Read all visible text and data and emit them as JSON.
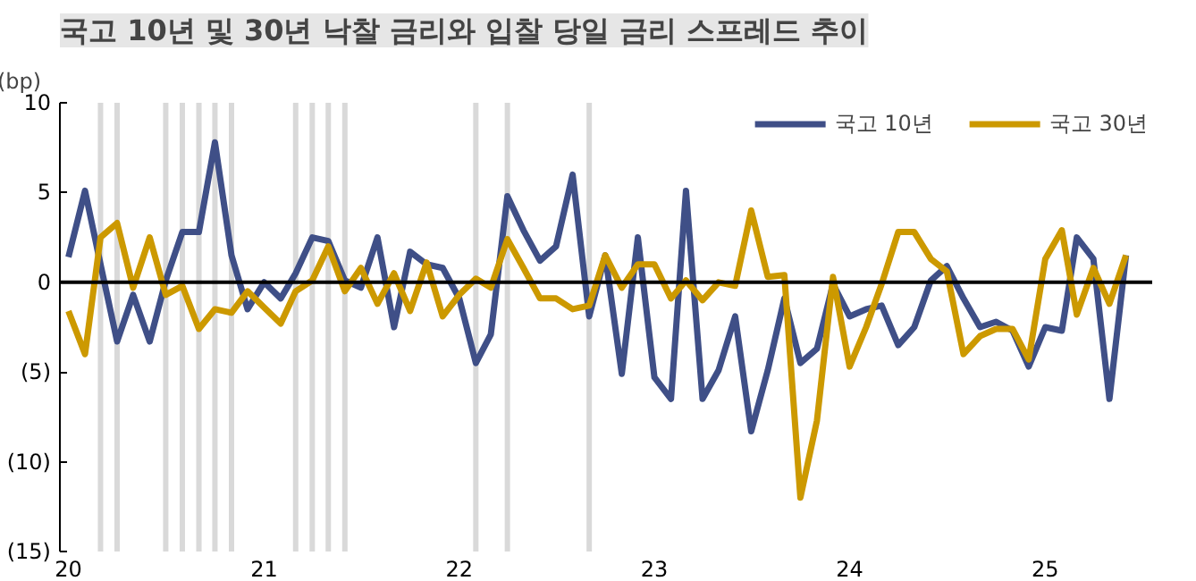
{
  "chart_data": {
    "type": "line",
    "title": "국고 10년 및 30년 낙찰 금리와 입찰 당일 금리 스프레드 추이",
    "ylabel": "(bp)",
    "x": [
      "2020-01",
      "2020-02",
      "2020-03",
      "2020-04",
      "2020-05",
      "2020-06",
      "2020-07",
      "2020-08",
      "2020-09",
      "2020-10",
      "2020-11",
      "2020-12",
      "2021-01",
      "2021-02",
      "2021-03",
      "2021-04",
      "2021-05",
      "2021-06",
      "2021-07",
      "2021-08",
      "2021-09",
      "2021-10",
      "2021-11",
      "2021-12",
      "2022-01",
      "2022-02",
      "2022-03",
      "2022-04",
      "2022-05",
      "2022-06",
      "2022-07",
      "2022-08",
      "2022-09",
      "2022-10",
      "2022-11",
      "2022-12",
      "2023-01",
      "2023-02",
      "2023-03",
      "2023-04",
      "2023-05",
      "2023-06",
      "2023-07",
      "2023-08",
      "2023-09",
      "2023-10",
      "2023-11",
      "2023-12",
      "2024-01",
      "2024-02",
      "2024-03",
      "2024-04",
      "2024-05",
      "2024-06",
      "2024-07",
      "2024-08",
      "2024-09",
      "2024-10",
      "2024-11",
      "2024-12",
      "2025-01",
      "2025-02",
      "2025-03",
      "2025-04",
      "2025-05",
      "2025-06"
    ],
    "series": [
      {
        "name": "국고 10년",
        "color": "#3f4f87",
        "values": [
          1.4,
          5.1,
          1.0,
          -3.3,
          -0.7,
          -3.3,
          0.1,
          2.8,
          2.8,
          7.8,
          1.5,
          -1.5,
          0,
          -0.9,
          0.5,
          2.5,
          2.3,
          0.1,
          -0.3,
          2.5,
          -2.5,
          1.7,
          1.0,
          0.8,
          -0.9,
          -4.5,
          -2.9,
          4.8,
          2.9,
          1.2,
          2.0,
          6.0,
          -1.9,
          1.5,
          -5.1,
          2.5,
          -5.3,
          -6.5,
          5.1,
          -6.5,
          -4.9,
          -1.9,
          -8.3,
          -4.9,
          -0.9,
          -4.5,
          -3.7,
          -0.1,
          -1.9,
          -1.5,
          -1.3,
          -3.5,
          -2.5,
          0.1,
          0.9,
          -0.9,
          -2.5,
          -2.2,
          -2.7,
          -4.7,
          -2.5,
          -2.7,
          2.5,
          1.3,
          -6.5,
          1.5
        ]
      },
      {
        "name": "국고 30년",
        "color": "#cc9900",
        "values": [
          -1.6,
          -4.0,
          2.5,
          3.3,
          -0.3,
          2.5,
          -0.7,
          -0.2,
          -2.6,
          -1.5,
          -1.7,
          -0.5,
          -1.4,
          -2.3,
          -0.5,
          0.1,
          2.0,
          -0.5,
          0.8,
          -1.2,
          0.5,
          -1.6,
          1.1,
          -1.9,
          -0.7,
          0.2,
          -0.3,
          2.4,
          0.8,
          -0.9,
          -0.9,
          -1.5,
          -1.3,
          1.5,
          -0.3,
          1.0,
          1.0,
          -0.9,
          0.1,
          -1.0,
          0,
          -0.2,
          4.0,
          0.3,
          0.4,
          -12.0,
          -7.7,
          0.3,
          -4.7,
          -2.5,
          -0.1,
          2.8,
          2.8,
          1.3,
          0.6,
          -4.0,
          -3.0,
          -2.6,
          -2.6,
          -4.3,
          1.3,
          2.9,
          -1.8,
          0.8,
          -1.2,
          1.5
        ]
      }
    ],
    "xlim": [
      "2019-12-16",
      "2025-07-20"
    ],
    "xticks": [
      {
        "value": "2020-01",
        "label": "20"
      },
      {
        "value": "2021-01",
        "label": "21"
      },
      {
        "value": "2022-01",
        "label": "22"
      },
      {
        "value": "2023-01",
        "label": "23"
      },
      {
        "value": "2024-01",
        "label": "24"
      },
      {
        "value": "2025-01",
        "label": "25"
      }
    ],
    "ylim": [
      -15,
      10
    ],
    "yticks": [
      10,
      5,
      0,
      {
        "value": -5,
        "label": "(5)"
      },
      {
        "value": -10,
        "label": "(10)"
      },
      {
        "value": -15,
        "label": "(15)"
      }
    ],
    "ref_lines": [
      {
        "axis": "y",
        "value": 0,
        "color": "#000000"
      },
      {
        "axis": "x",
        "value": "2020-03",
        "color": "#d9d9d9"
      },
      {
        "axis": "x",
        "value": "2020-04",
        "color": "#d9d9d9"
      },
      {
        "axis": "x",
        "value": "2020-07",
        "color": "#d9d9d9"
      },
      {
        "axis": "x",
        "value": "2020-08",
        "color": "#d9d9d9"
      },
      {
        "axis": "x",
        "value": "2020-09",
        "color": "#d9d9d9"
      },
      {
        "axis": "x",
        "value": "2020-10",
        "color": "#d9d9d9"
      },
      {
        "axis": "x",
        "value": "2020-11",
        "color": "#d9d9d9"
      },
      {
        "axis": "x",
        "value": "2021-03",
        "color": "#d9d9d9"
      },
      {
        "axis": "x",
        "value": "2021-04",
        "color": "#d9d9d9"
      },
      {
        "axis": "x",
        "value": "2021-05",
        "color": "#d9d9d9"
      },
      {
        "axis": "x",
        "value": "2021-06",
        "color": "#d9d9d9"
      },
      {
        "axis": "x",
        "value": "2022-02",
        "color": "#d9d9d9"
      },
      {
        "axis": "x",
        "value": "2022-04",
        "color": "#d9d9d9"
      },
      {
        "axis": "x",
        "value": "2022-09",
        "color": "#d9d9d9"
      }
    ],
    "grid": false,
    "legend": "top right",
    "marker": "none",
    "line_style": "solid"
  }
}
